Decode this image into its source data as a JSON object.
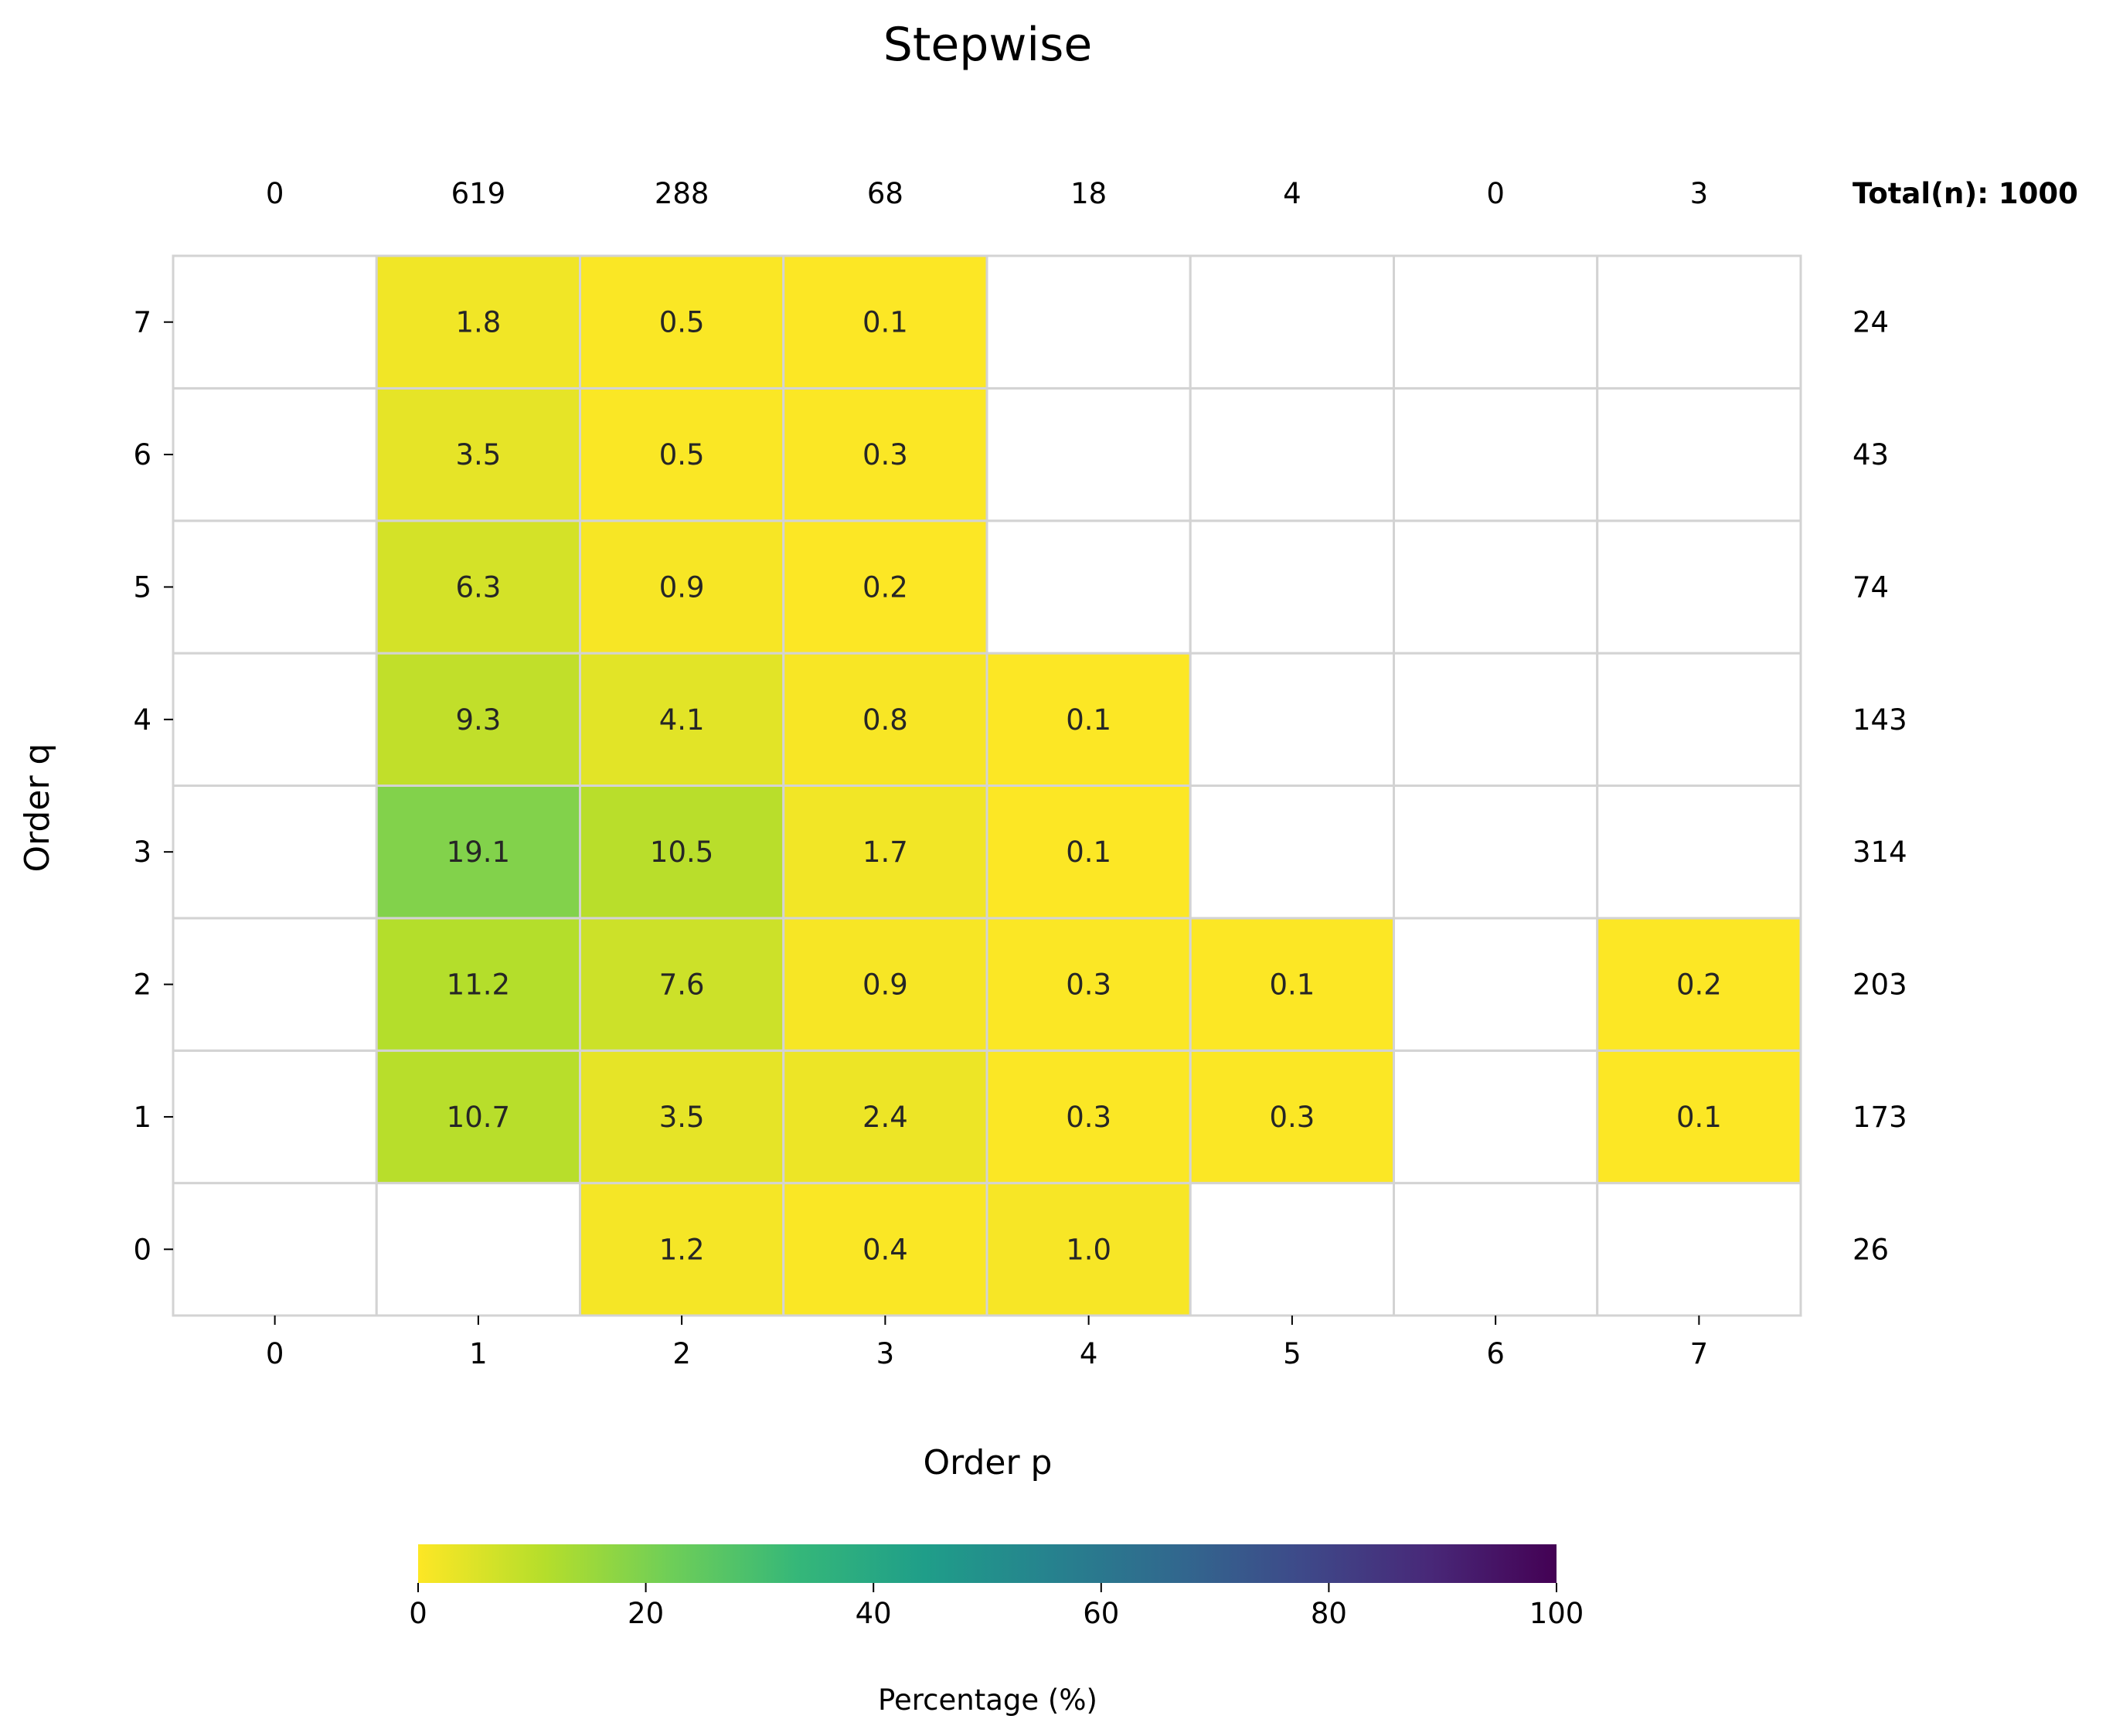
{
  "chart_data": {
    "type": "heatmap",
    "title": "Stepwise",
    "xlabel": "Order p",
    "ylabel": "Order q",
    "x_categories": [
      "0",
      "1",
      "2",
      "3",
      "4",
      "5",
      "6",
      "7"
    ],
    "y_categories": [
      "0",
      "1",
      "2",
      "3",
      "4",
      "5",
      "6",
      "7"
    ],
    "values": [
      [
        null,
        null,
        1.2,
        0.4,
        1.0,
        null,
        null,
        null
      ],
      [
        null,
        10.7,
        3.5,
        2.4,
        0.3,
        0.3,
        null,
        0.1
      ],
      [
        null,
        11.2,
        7.6,
        0.9,
        0.3,
        0.1,
        null,
        0.2
      ],
      [
        null,
        19.1,
        10.5,
        1.7,
        0.1,
        null,
        null,
        null
      ],
      [
        null,
        9.3,
        4.1,
        0.8,
        0.1,
        null,
        null,
        null
      ],
      [
        null,
        6.3,
        0.9,
        0.2,
        null,
        null,
        null,
        null
      ],
      [
        null,
        3.5,
        0.5,
        0.3,
        null,
        null,
        null,
        null
      ],
      [
        null,
        1.8,
        0.5,
        0.1,
        null,
        null,
        null,
        null
      ]
    ],
    "value_format": "one decimal",
    "column_totals": [
      "0",
      "619",
      "288",
      "68",
      "18",
      "4",
      "0",
      "3"
    ],
    "row_totals": [
      "26",
      "173",
      "203",
      "314",
      "143",
      "74",
      "43",
      "24"
    ],
    "total_label": "Total(n): 1000",
    "colorbar": {
      "label": "Percentage (%)",
      "range": [
        0,
        100
      ],
      "ticks": [
        "0",
        "20",
        "40",
        "60",
        "80",
        "100"
      ],
      "colormap": "viridis reversed",
      "colors": [
        "#fde725",
        "#b5de2b",
        "#6ece58",
        "#35b779",
        "#1f9e89",
        "#26828e",
        "#31688e",
        "#3e4989",
        "#482878",
        "#440154"
      ]
    },
    "grid": true,
    "empty_cell_color": "#ffffff",
    "grid_color": "#d3d3d3"
  }
}
